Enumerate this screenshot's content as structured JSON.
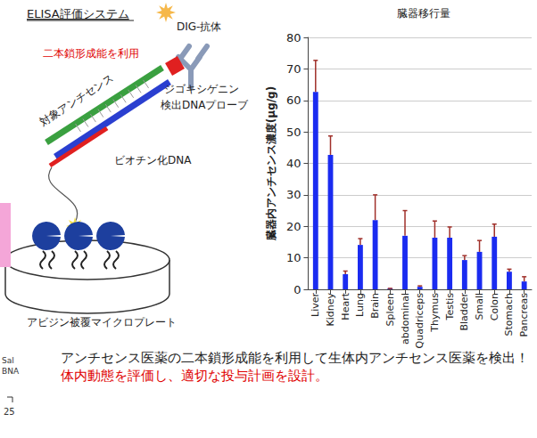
{
  "chart_data": {
    "type": "bar",
    "title": "臓器移行量",
    "y_label": "臓器内アンチセンス濃度(µg/g)",
    "categories": [
      "Liver",
      "Kidney",
      "Heart",
      "Lung",
      "Brain",
      "Spleen",
      "abdominal",
      "Quadriceps",
      "Thymus",
      "Testis",
      "Bladder",
      "Small",
      "Colon",
      "Stomach",
      "Pancreas"
    ],
    "values": [
      62.7,
      42.7,
      4.8,
      14.1,
      22.0,
      0.3,
      17.0,
      0.8,
      16.4,
      16.4,
      9.3,
      11.9,
      16.7,
      5.6,
      2.5
    ],
    "errors": [
      10.0,
      6.0,
      1.0,
      2.0,
      8.0,
      0.0,
      8.0,
      0.3,
      5.3,
      3.4,
      1.4,
      3.6,
      4.0,
      0.8,
      1.5
    ],
    "color": "#1a2bf0",
    "ylim": [
      0,
      80
    ],
    "yticks": [
      0,
      10,
      20,
      30,
      40,
      50,
      60,
      70,
      80
    ],
    "grid": true
  },
  "diagram": {
    "title": "ELISA評価システム",
    "antibody": "DIG-抗体",
    "method": "二本鎖形成能を利用",
    "target": "対象アンチセンス",
    "probe_line1": "ジゴキシゲニン",
    "probe_line2": "検出DNAプローブ",
    "biotin": "ビオチン化DNA",
    "plate": "アビジン被覆マイクロプレート"
  },
  "caption": {
    "text": "アンチセンス医薬の二本鎖形成能を利用して生体内アンチセンス医薬を検出！",
    "highlight": "体内動態を評価し、適切な投与計画を設計。"
  },
  "fragments": [
    "Sal",
    "BNA",
    "25"
  ]
}
